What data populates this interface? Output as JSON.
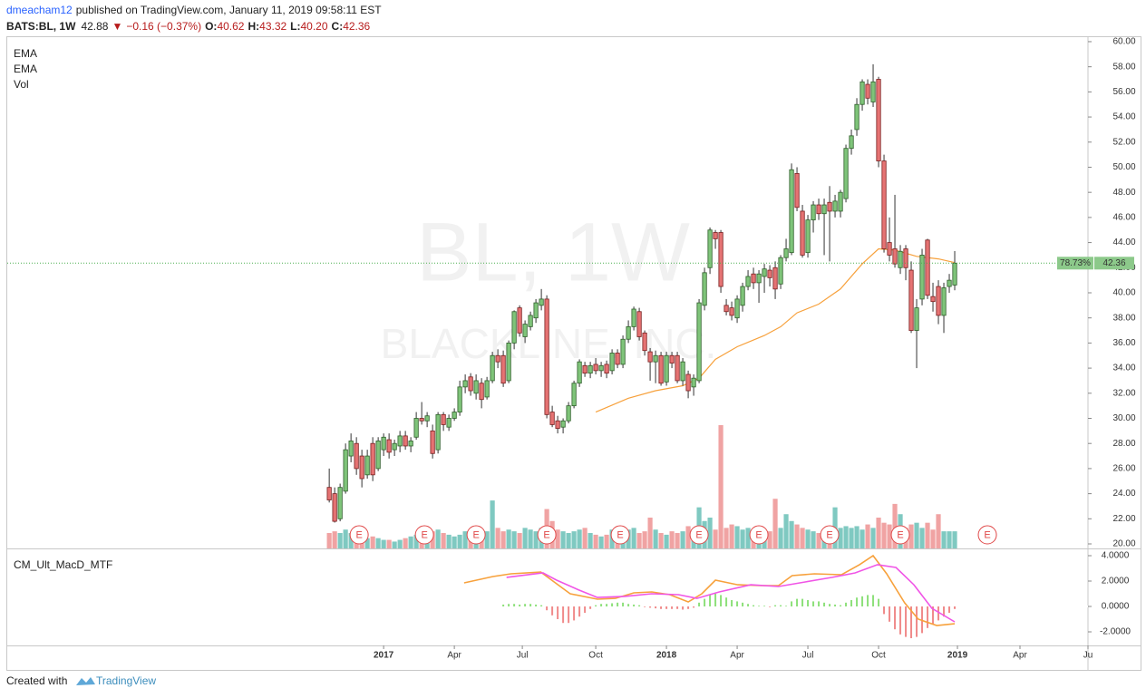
{
  "header": {
    "user": "dmeacham12",
    "published": "published on TradingView.com, January 11, 2019 09:58:11 EST",
    "symbol": "BATS:BL, 1W",
    "last": "42.88",
    "arrow": "▼",
    "change": "−0.16 (−0.37%)",
    "o_label": "O:",
    "open": "40.62",
    "h_label": "H:",
    "high": "43.32",
    "l_label": "L:",
    "low": "40.20",
    "c_label": "C:",
    "close": "42.36"
  },
  "footer": {
    "text": "Created with",
    "brand": "TradingView"
  },
  "chart_data": [
    {
      "type": "candlestick",
      "watermark": "BL, 1W",
      "watermark_sub": "BLACKLINE, INC.",
      "indicators": [
        "EMA",
        "EMA",
        "Vol"
      ],
      "up_color": "#7fc47a",
      "down_color": "#e57373",
      "vol_up_color": "#7fc9c1",
      "vol_down_color": "#f0a3a3",
      "xlim": [
        -69.2,
        129.5
      ],
      "ylim": [
        19.64,
        60.43
      ],
      "vlim": [
        0,
        4.5
      ],
      "yticks": [
        {
          "value": 20,
          "label": "20.00"
        },
        {
          "value": 22,
          "label": "22.00"
        },
        {
          "value": 24,
          "label": "24.00"
        },
        {
          "value": 26,
          "label": "26.00"
        },
        {
          "value": 28,
          "label": "28.00"
        },
        {
          "value": 30,
          "label": "30.00"
        },
        {
          "value": 32,
          "label": "32.00"
        },
        {
          "value": 34,
          "label": "34.00"
        },
        {
          "value": 36,
          "label": "36.00"
        },
        {
          "value": 38,
          "label": "38.00"
        },
        {
          "value": 40,
          "label": "40.00"
        },
        {
          "value": 42,
          "label": "42.00"
        },
        {
          "value": 44,
          "label": "44.00"
        },
        {
          "value": 46,
          "label": "46.00"
        },
        {
          "value": 48,
          "label": "48.00"
        },
        {
          "value": 50,
          "label": "50.00"
        },
        {
          "value": 52,
          "label": "52.00"
        },
        {
          "value": 54,
          "label": "54.00"
        },
        {
          "value": 56,
          "label": "56.00"
        },
        {
          "value": 58,
          "label": "58.00"
        },
        {
          "value": 60,
          "label": "60.00"
        }
      ],
      "x": [
        -10,
        -9,
        -8,
        -7,
        -6,
        -5,
        -4,
        -3,
        -2,
        -1,
        0,
        1,
        2,
        3,
        4,
        5,
        6,
        7,
        8,
        9,
        10,
        11,
        12,
        13,
        14,
        15,
        16,
        17,
        18,
        19,
        20,
        21,
        22,
        23,
        24,
        25,
        26,
        27,
        28,
        29,
        30,
        31,
        32,
        33,
        34,
        35,
        36,
        37,
        38,
        39,
        40,
        41,
        42,
        43,
        44,
        45,
        46,
        47,
        48,
        49,
        50,
        51,
        52,
        53,
        54,
        55,
        56,
        57,
        58,
        59,
        60,
        61,
        62,
        63,
        64,
        65,
        66,
        67,
        68,
        69,
        70,
        71,
        72,
        73,
        74,
        75,
        76,
        77,
        78,
        79,
        80,
        81,
        82,
        83,
        84,
        85,
        86,
        87,
        88,
        89,
        90,
        91,
        92,
        93,
        94,
        95,
        96,
        97,
        98,
        99,
        100,
        101,
        102,
        103,
        104,
        105
      ],
      "open": [
        24.5,
        24,
        22,
        24.2,
        27,
        28,
        27,
        25.5,
        28,
        26,
        27.5,
        28.3,
        27.5,
        27.8,
        28.6,
        27.8,
        28.5,
        30,
        29.8,
        29,
        27.5,
        30.3,
        29.3,
        30,
        30.5,
        32.5,
        33.3,
        32,
        32.8,
        31.7,
        33,
        35,
        35,
        33,
        36,
        38.8,
        36.5,
        37.3,
        38,
        39,
        39.5,
        30.5,
        29.8,
        29.3,
        29.8,
        31,
        32.8,
        34.2,
        33.6,
        34.3,
        33.8,
        34.3,
        33.8,
        35.2,
        34.3,
        36.3,
        37.3,
        38.5,
        36.8,
        35.3,
        34.5,
        35,
        32.9,
        35,
        35,
        33,
        33.5,
        32.5,
        33,
        39,
        42,
        44.8,
        44.8,
        39,
        38.8,
        38,
        39,
        40.5,
        41.5,
        40.8,
        41.3,
        41.8,
        42,
        40.7,
        42.8,
        43.2,
        49.5,
        46.5,
        43.2,
        45.8,
        47,
        46.3,
        47.2,
        46.5,
        46.5,
        47.5,
        51.5,
        53,
        55,
        56.6,
        55.2,
        57,
        50.5,
        44,
        43.5,
        42,
        43.5,
        41.8,
        37,
        39.5,
        44.2,
        39.7,
        40.5,
        38.2,
        40.5,
        40.62
      ],
      "high": [
        26,
        24.5,
        24.8,
        28,
        28.8,
        28.5,
        27.5,
        27.5,
        28.5,
        28.5,
        28.8,
        28.8,
        28.3,
        29,
        29,
        28.5,
        30.5,
        31.3,
        30.5,
        29.5,
        30.5,
        30.5,
        30.3,
        30.8,
        33,
        33.5,
        33.6,
        33.5,
        33.2,
        33.3,
        35.3,
        35.5,
        35.4,
        36.2,
        38.6,
        39,
        37.8,
        38.5,
        39.5,
        40.3,
        39.8,
        31,
        30.2,
        30,
        31.3,
        33,
        34.7,
        34.5,
        34.5,
        34.8,
        34.5,
        34.6,
        35.5,
        35.5,
        36.6,
        37.8,
        38.9,
        38.8,
        37,
        35.6,
        35.4,
        35.3,
        35.3,
        35.3,
        35.3,
        34.8,
        33.8,
        33.5,
        39.5,
        42,
        45.2,
        45,
        45,
        39.5,
        39.3,
        39.8,
        40.8,
        41.8,
        42,
        41.8,
        42.3,
        42.2,
        42.5,
        43,
        44.3,
        50.3,
        50,
        47,
        46.2,
        47.3,
        47.5,
        47.5,
        48.5,
        47.8,
        48.2,
        51.8,
        53,
        55.5,
        57,
        57,
        58.2,
        57.2,
        51,
        46,
        47.8,
        43.8,
        43.8,
        42.5,
        39.5,
        43.5,
        44.3,
        40.8,
        41,
        40.8,
        41.5,
        43.32
      ],
      "low": [
        23.3,
        21.7,
        21.8,
        24,
        26.5,
        25.5,
        24.5,
        25.2,
        25,
        25.8,
        27,
        26.8,
        27,
        27.3,
        27.5,
        27.3,
        28.3,
        29.5,
        29.3,
        26.8,
        27.2,
        29,
        29,
        29.8,
        30.2,
        32,
        31.8,
        31.5,
        30.8,
        31.5,
        32.8,
        34,
        32.5,
        32.8,
        35.5,
        36.5,
        36,
        37,
        37.6,
        38.6,
        30,
        29.3,
        28.8,
        28.8,
        29.6,
        30.8,
        32.5,
        33.3,
        33.2,
        33.5,
        33.3,
        33.2,
        33.5,
        34,
        34,
        36,
        37,
        36.2,
        35,
        33,
        32.8,
        32.6,
        32.6,
        34,
        32.8,
        32.6,
        31.6,
        31.8,
        32.8,
        38.6,
        41.5,
        43.5,
        40,
        38.2,
        37.8,
        37.6,
        38.5,
        40.2,
        40.3,
        39.2,
        40,
        40.5,
        39.5,
        40.3,
        42.5,
        43,
        46.5,
        42.8,
        42.8,
        44.8,
        45.8,
        43,
        42.5,
        46,
        46,
        47.2,
        51,
        52.5,
        54.5,
        55,
        54.8,
        50,
        43.2,
        42.5,
        42,
        41.5,
        41,
        36.8,
        34,
        39,
        39.5,
        38.5,
        37.5,
        36.8,
        40,
        40.2
      ],
      "close": [
        23.5,
        21.8,
        24.5,
        27.5,
        28.2,
        26,
        25.2,
        27,
        25.5,
        28.2,
        28.5,
        27.3,
        28,
        28.6,
        27.8,
        28.2,
        30,
        29.8,
        30.2,
        27.2,
        30.3,
        29.5,
        30,
        30.5,
        32.5,
        33,
        32.2,
        33,
        31.5,
        33,
        35,
        34.5,
        32.8,
        36,
        38.5,
        36.8,
        37.5,
        38.2,
        39.2,
        39.5,
        30.3,
        29.5,
        29.2,
        29.8,
        31,
        32.8,
        34.5,
        33.6,
        34.2,
        33.8,
        34.2,
        33.6,
        35.2,
        34.3,
        36.3,
        37.3,
        38.7,
        36.5,
        35.4,
        34.5,
        35,
        32.8,
        35,
        34.4,
        33,
        34.5,
        32.2,
        33.2,
        39.2,
        41.6,
        45,
        44.3,
        40.5,
        38.5,
        38.2,
        39.5,
        40.5,
        41.3,
        40.8,
        41.5,
        41.9,
        41.2,
        40.3,
        42.8,
        43.5,
        49.8,
        46.8,
        43,
        45.8,
        47,
        46.3,
        47,
        46.5,
        47.3,
        48,
        51.5,
        52.5,
        55,
        56.8,
        55.5,
        56.8,
        50.5,
        43.5,
        43,
        42.3,
        43.3,
        42,
        37,
        38.8,
        43,
        39.8,
        39.3,
        38.2,
        40.4,
        41,
        42.36
      ],
      "volume": [
        0.45,
        0.5,
        0.45,
        0.55,
        0.45,
        0.4,
        0.35,
        0.3,
        0.35,
        0.3,
        0.25,
        0.25,
        0.2,
        0.25,
        0.3,
        0.35,
        0.4,
        0.35,
        0.45,
        0.5,
        0.55,
        0.45,
        0.4,
        0.35,
        0.4,
        0.5,
        0.45,
        0.4,
        0.45,
        0.5,
        1.4,
        0.6,
        0.5,
        0.55,
        0.5,
        0.45,
        0.6,
        0.55,
        0.5,
        0.6,
        1.15,
        0.8,
        0.55,
        0.5,
        0.45,
        0.5,
        0.55,
        0.6,
        0.45,
        0.4,
        0.35,
        0.4,
        0.55,
        0.45,
        0.5,
        0.55,
        0.6,
        0.45,
        0.5,
        0.9,
        0.55,
        0.45,
        0.4,
        0.5,
        0.45,
        0.5,
        0.65,
        0.55,
        1.2,
        0.8,
        0.9,
        0.55,
        3.6,
        0.6,
        0.7,
        0.65,
        0.55,
        0.6,
        0.5,
        0.55,
        0.45,
        0.5,
        1.45,
        0.6,
        1.0,
        0.8,
        0.7,
        0.6,
        0.55,
        0.5,
        0.45,
        0.5,
        0.55,
        1.2,
        0.6,
        0.65,
        0.6,
        0.65,
        0.55,
        0.7,
        0.6,
        0.9,
        0.75,
        0.7,
        1.3,
        1.0,
        0.6,
        0.7,
        0.75,
        0.6,
        0.75,
        0.55,
        1.0,
        0.5,
        0.5,
        0.5
      ],
      "ema": {
        "color": "#f7a13c",
        "x": [
          39,
          45,
          50,
          55,
          58,
          61,
          65,
          70,
          73,
          76,
          80,
          84,
          88,
          91,
          94,
          98,
          102,
          105
        ],
        "values": [
          30.5,
          31.6,
          32.2,
          32.6,
          33.2,
          34.7,
          35.7,
          36.6,
          37.3,
          38.4,
          39.1,
          40.3,
          42.3,
          43.5,
          43.4,
          42.9,
          42.7,
          42.4
        ]
      },
      "earnings": {
        "label": "E",
        "color": "#e04848",
        "x": [
          -4.5,
          7.5,
          17,
          30,
          43.5,
          58,
          69,
          82,
          95,
          111
        ]
      },
      "price_badges": [
        "78.73%",
        "42.36"
      ],
      "badge_color": "#8cc98a",
      "last_line_color": "#4caf50"
    },
    {
      "type": "line",
      "title": "CM_Ult_MacD_MTF",
      "xlim": [
        -69.2,
        129.5
      ],
      "ylim": [
        -3.07,
        4.5
      ],
      "yticks": [
        {
          "value": 4,
          "label": "4.0000"
        },
        {
          "value": 2,
          "label": "2.0000"
        },
        {
          "value": 0,
          "label": "0.0000"
        },
        {
          "value": -2,
          "label": "-2.0000"
        }
      ],
      "xticks": [
        {
          "value": 0,
          "label": "2017"
        },
        {
          "value": 13,
          "label": "Apr"
        },
        {
          "value": 25.5,
          "label": "Jul"
        },
        {
          "value": 39,
          "label": "Oct"
        },
        {
          "value": 52,
          "label": "2018"
        },
        {
          "value": 65,
          "label": "Apr"
        },
        {
          "value": 78,
          "label": "Jul"
        },
        {
          "value": 91,
          "label": "Oct"
        },
        {
          "value": 105.5,
          "label": "2019"
        },
        {
          "value": 117,
          "label": "Apr"
        },
        {
          "value": 129.5,
          "label": "Ju"
        }
      ],
      "series": [
        {
          "color": "#f7a13c",
          "x": [
            14.8,
            20.1,
            23.4,
            28.9,
            30.9,
            34.3,
            39.3,
            42.6,
            46,
            49.3,
            52.6,
            56,
            58.5,
            61,
            65.1,
            69.3,
            72.6,
            75.1,
            79.2,
            84.2,
            87.5,
            90,
            92.5,
            95.8,
            98.3,
            101.7,
            105
          ],
          "values": [
            1.86,
            2.36,
            2.57,
            2.71,
            2.07,
            1.0,
            0.57,
            0.64,
            1.07,
            1.14,
            0.93,
            0.36,
            1.0,
            2.07,
            1.71,
            1.64,
            1.64,
            2.43,
            2.57,
            2.5,
            3.29,
            4.0,
            2.57,
            0.29,
            -1.0,
            -1.5,
            -1.36
          ]
        },
        {
          "color": "#f055e6",
          "x": [
            22.6,
            29.3,
            31.8,
            35.9,
            39.3,
            44.3,
            49.3,
            54.2,
            57.6,
            61.7,
            67.5,
            72.6,
            77.5,
            82.5,
            86.7,
            90.8,
            94.2,
            97.5,
            100.8,
            105
          ],
          "values": [
            2.29,
            2.64,
            2.07,
            1.29,
            0.71,
            0.79,
            1.0,
            0.93,
            0.64,
            1.14,
            1.71,
            1.57,
            1.93,
            2.29,
            2.64,
            3.29,
            3.07,
            1.71,
            -0.14,
            -1.21
          ]
        }
      ],
      "histogram": {
        "up_color": "#8de07a",
        "down_color": "#f08a8a",
        "x": [
          22,
          23,
          24,
          25,
          26,
          27,
          28,
          29,
          30,
          31,
          32,
          33,
          34,
          35,
          36,
          37,
          38,
          39,
          40,
          41,
          42,
          43,
          44,
          45,
          46,
          47,
          48,
          49,
          50,
          51,
          52,
          53,
          54,
          55,
          56,
          57,
          58,
          59,
          60,
          61,
          62,
          63,
          64,
          65,
          66,
          67,
          68,
          69,
          70,
          71,
          72,
          73,
          74,
          75,
          76,
          77,
          78,
          79,
          80,
          81,
          82,
          83,
          84,
          85,
          86,
          87,
          88,
          89,
          90,
          91,
          92,
          93,
          94,
          95,
          96,
          97,
          98,
          99,
          100,
          101,
          102,
          103,
          104,
          105
        ],
        "values": [
          0.15,
          0.2,
          0.2,
          0.15,
          0.2,
          0.2,
          0.15,
          0.1,
          -0.3,
          -0.7,
          -1.0,
          -1.3,
          -1.3,
          -1.1,
          -0.8,
          -0.5,
          -0.2,
          0.1,
          0.2,
          0.2,
          0.25,
          0.3,
          0.3,
          0.2,
          0.15,
          0.1,
          -0.05,
          -0.1,
          -0.15,
          -0.2,
          -0.2,
          -0.2,
          -0.2,
          -0.25,
          -0.2,
          -0.1,
          0.3,
          0.6,
          0.9,
          1.0,
          0.9,
          0.7,
          0.5,
          0.4,
          0.3,
          0.2,
          0.1,
          0.05,
          0.05,
          -0.05,
          0.1,
          0.1,
          0.05,
          0.4,
          0.6,
          0.6,
          0.5,
          0.4,
          0.4,
          0.3,
          0.2,
          0.15,
          0.1,
          0.3,
          0.5,
          0.7,
          0.8,
          0.9,
          0.9,
          0.6,
          -0.6,
          -1.2,
          -1.8,
          -2.2,
          -2.4,
          -2.5,
          -2.4,
          -2.1,
          -1.7,
          -1.4,
          -1.1,
          -0.8,
          -0.5,
          -0.2
        ]
      }
    }
  ]
}
